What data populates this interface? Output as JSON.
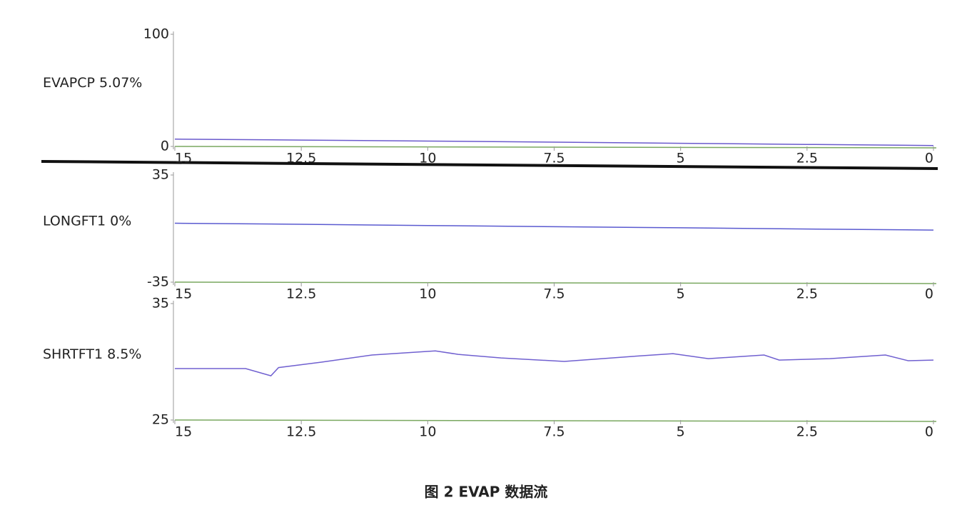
{
  "chart_data": [
    {
      "type": "line",
      "label": "EVAPCP  5.07%",
      "color": "#6a5acd",
      "x": [
        15,
        12.5,
        10,
        7.5,
        5,
        2.5,
        0
      ],
      "values": [
        6.5,
        5.7,
        4.8,
        3.8,
        2.8,
        1.8,
        0.8
      ],
      "xlim": [
        15,
        0
      ],
      "xticks": [
        15,
        12.5,
        10,
        7.5,
        5,
        2.5,
        0
      ],
      "ylim": [
        0,
        100
      ],
      "yticks": [
        0,
        100
      ]
    },
    {
      "type": "line",
      "label": "LONGFT1  0%",
      "color": "#5a5ad0",
      "x": [
        15,
        12.5,
        10,
        7.5,
        5,
        2.5,
        0
      ],
      "values": [
        3.5,
        2.8,
        2,
        1.2,
        0.5,
        -0.3,
        -1
      ],
      "xlim": [
        15,
        0
      ],
      "xticks": [
        15,
        12.5,
        10,
        7.5,
        5,
        2.5,
        0
      ],
      "ylim": [
        -35,
        35
      ],
      "yticks": [
        -35,
        35
      ]
    },
    {
      "type": "line",
      "label": "SHRTFT1  8.5%",
      "color": "#7060d0",
      "x": [
        15,
        13.6,
        13.1,
        12.95,
        12.1,
        11.1,
        9.85,
        9.4,
        8.55,
        7.3,
        6.0,
        5.15,
        4.45,
        3.35,
        3.05,
        2.05,
        0.95,
        0.5,
        0
      ],
      "values": [
        29.42,
        29.42,
        28.8,
        29.5,
        29.97,
        30.58,
        30.94,
        30.64,
        30.33,
        30.03,
        30.45,
        30.7,
        30.27,
        30.58,
        30.15,
        30.27,
        30.58,
        30.09,
        30.15
      ],
      "xlim": [
        15,
        0
      ],
      "xticks": [
        15,
        12.5,
        10,
        7.5,
        5,
        2.5,
        0
      ],
      "ylim": [
        25,
        35
      ],
      "yticks": [
        25,
        35
      ]
    }
  ],
  "caption": "图 2  EVAP 数据流"
}
